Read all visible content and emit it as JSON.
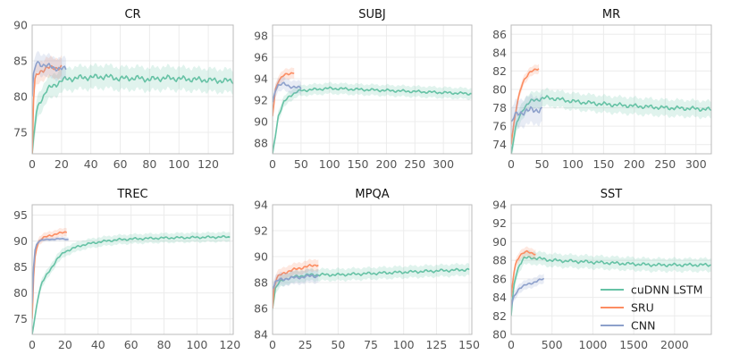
{
  "legend": {
    "placement": "lower-right of last panel",
    "entries": [
      {
        "label": "cuDNN LSTM",
        "color": "#66c2a5"
      },
      {
        "label": "SRU",
        "color": "#fc8d62"
      },
      {
        "label": "CNN",
        "color": "#8da0cb"
      }
    ]
  },
  "chart_data": [
    {
      "type": "line",
      "title": "CR",
      "xlim": [
        0,
        137
      ],
      "ylim": [
        72,
        90
      ],
      "xticks": [
        0,
        20,
        40,
        60,
        80,
        100,
        120
      ],
      "yticks": [
        75,
        80,
        85,
        90
      ],
      "grid": true,
      "series": [
        {
          "name": "cuDNN LSTM",
          "band": 1.6,
          "points": [
            [
              0,
              72
            ],
            [
              3,
              78
            ],
            [
              6,
              79.5
            ],
            [
              10,
              81
            ],
            [
              15,
              81.5
            ],
            [
              20,
              82.3
            ],
            [
              30,
              82.6
            ],
            [
              40,
              82.7
            ],
            [
              50,
              82.8
            ],
            [
              60,
              82.5
            ],
            [
              70,
              82.6
            ],
            [
              80,
              82.4
            ],
            [
              90,
              82.6
            ],
            [
              100,
              82.5
            ],
            [
              110,
              82.4
            ],
            [
              120,
              82.3
            ],
            [
              130,
              82.2
            ],
            [
              137,
              82.2
            ]
          ]
        },
        {
          "name": "SRU",
          "band": 1.4,
          "points": [
            [
              0,
              72
            ],
            [
              1,
              80
            ],
            [
              2,
              82.5
            ],
            [
              4,
              83.2
            ],
            [
              6,
              83.6
            ],
            [
              10,
              84
            ],
            [
              15,
              84
            ],
            [
              20,
              84.1
            ]
          ]
        },
        {
          "name": "CNN",
          "band": 1.5,
          "points": [
            [
              0,
              80
            ],
            [
              1,
              83
            ],
            [
              3,
              84.8
            ],
            [
              5,
              84.6
            ],
            [
              10,
              84.3
            ],
            [
              15,
              84
            ],
            [
              20,
              83.9
            ],
            [
              23,
              83.8
            ]
          ]
        }
      ]
    },
    {
      "type": "line",
      "title": "SUBJ",
      "xlim": [
        0,
        350
      ],
      "ylim": [
        87,
        99
      ],
      "xticks": [
        0,
        50,
        100,
        150,
        200,
        250,
        300
      ],
      "yticks": [
        88,
        90,
        92,
        94,
        96,
        98
      ],
      "grid": true,
      "series": [
        {
          "name": "cuDNN LSTM",
          "band": 0.5,
          "points": [
            [
              0,
              87
            ],
            [
              10,
              90.5
            ],
            [
              20,
              91.8
            ],
            [
              30,
              92.4
            ],
            [
              40,
              92.7
            ],
            [
              50,
              92.9
            ],
            [
              75,
              93
            ],
            [
              100,
              93.1
            ],
            [
              150,
              93
            ],
            [
              200,
              92.9
            ],
            [
              250,
              92.8
            ],
            [
              300,
              92.7
            ],
            [
              350,
              92.6
            ]
          ]
        },
        {
          "name": "SRU",
          "band": 0.5,
          "points": [
            [
              0,
              90.5
            ],
            [
              5,
              93
            ],
            [
              10,
              93.8
            ],
            [
              20,
              94.3
            ],
            [
              30,
              94.5
            ],
            [
              38,
              94.6
            ]
          ]
        },
        {
          "name": "CNN",
          "band": 0.6,
          "points": [
            [
              0,
              91.8
            ],
            [
              5,
              93
            ],
            [
              10,
              93.4
            ],
            [
              20,
              93.5
            ],
            [
              30,
              93.3
            ],
            [
              40,
              93.2
            ],
            [
              50,
              93.1
            ]
          ]
        }
      ]
    },
    {
      "type": "line",
      "title": "MR",
      "xlim": [
        0,
        325
      ],
      "ylim": [
        73,
        87
      ],
      "xticks": [
        0,
        50,
        100,
        150,
        200,
        250,
        300
      ],
      "yticks": [
        74,
        76,
        78,
        80,
        82,
        84,
        86
      ],
      "grid": true,
      "series": [
        {
          "name": "cuDNN LSTM",
          "band": 0.9,
          "points": [
            [
              0,
              73
            ],
            [
              5,
              75
            ],
            [
              10,
              76.5
            ],
            [
              20,
              78
            ],
            [
              30,
              78.6
            ],
            [
              40,
              78.9
            ],
            [
              60,
              79.1
            ],
            [
              80,
              78.9
            ],
            [
              100,
              78.7
            ],
            [
              150,
              78.4
            ],
            [
              200,
              78.2
            ],
            [
              250,
              78
            ],
            [
              300,
              77.9
            ],
            [
              325,
              77.8
            ]
          ]
        },
        {
          "name": "SRU",
          "band": 0.5,
          "points": [
            [
              0,
              74
            ],
            [
              5,
              76.5
            ],
            [
              10,
              78.5
            ],
            [
              15,
              80
            ],
            [
              20,
              81
            ],
            [
              30,
              81.8
            ],
            [
              40,
              82.2
            ],
            [
              45,
              82.3
            ]
          ]
        },
        {
          "name": "CNN",
          "band": 1.5,
          "points": [
            [
              0,
              76.5
            ],
            [
              5,
              77
            ],
            [
              10,
              77.3
            ],
            [
              20,
              77.6
            ],
            [
              30,
              77.7
            ],
            [
              40,
              77.8
            ],
            [
              50,
              77.8
            ]
          ]
        }
      ]
    },
    {
      "type": "line",
      "title": "TREC",
      "xlim": [
        0,
        122
      ],
      "ylim": [
        72,
        97
      ],
      "xticks": [
        0,
        20,
        40,
        60,
        80,
        100,
        120
      ],
      "yticks": [
        75,
        80,
        85,
        90,
        95
      ],
      "grid": true,
      "series": [
        {
          "name": "cuDNN LSTM",
          "band": 0.9,
          "points": [
            [
              0,
              72
            ],
            [
              2,
              76
            ],
            [
              4,
              80
            ],
            [
              6,
              82
            ],
            [
              10,
              84
            ],
            [
              15,
              86.5
            ],
            [
              20,
              88
            ],
            [
              30,
              89.2
            ],
            [
              40,
              89.8
            ],
            [
              50,
              90.2
            ],
            [
              60,
              90.4
            ],
            [
              80,
              90.6
            ],
            [
              100,
              90.7
            ],
            [
              120,
              90.8
            ]
          ]
        },
        {
          "name": "SRU",
          "band": 0.8,
          "points": [
            [
              0,
              75
            ],
            [
              1,
              84
            ],
            [
              2,
              88
            ],
            [
              4,
              90
            ],
            [
              6,
              90.5
            ],
            [
              10,
              91
            ],
            [
              15,
              91.4
            ],
            [
              20,
              91.7
            ],
            [
              21,
              91.8
            ]
          ]
        },
        {
          "name": "CNN",
          "band": 0.4,
          "points": [
            [
              0,
              78
            ],
            [
              1,
              86
            ],
            [
              2,
              89
            ],
            [
              4,
              90
            ],
            [
              6,
              90.2
            ],
            [
              10,
              90.3
            ],
            [
              15,
              90.4
            ],
            [
              20,
              90.4
            ],
            [
              22,
              90.3
            ]
          ]
        }
      ]
    },
    {
      "type": "line",
      "title": "MPQA",
      "xlim": [
        0,
        152
      ],
      "ylim": [
        84,
        94
      ],
      "xticks": [
        0,
        25,
        50,
        75,
        100,
        125,
        150
      ],
      "yticks": [
        84,
        86,
        88,
        90,
        92,
        94
      ],
      "grid": true,
      "series": [
        {
          "name": "cuDNN LSTM",
          "band": 0.45,
          "points": [
            [
              0,
              86
            ],
            [
              2,
              87.5
            ],
            [
              5,
              88
            ],
            [
              10,
              88.3
            ],
            [
              20,
              88.5
            ],
            [
              30,
              88.6
            ],
            [
              50,
              88.6
            ],
            [
              75,
              88.7
            ],
            [
              100,
              88.8
            ],
            [
              125,
              88.9
            ],
            [
              150,
              89
            ]
          ]
        },
        {
          "name": "SRU",
          "band": 0.45,
          "points": [
            [
              0,
              86
            ],
            [
              1,
              87.6
            ],
            [
              3,
              88.3
            ],
            [
              6,
              88.6
            ],
            [
              10,
              88.8
            ],
            [
              20,
              89.1
            ],
            [
              30,
              89.3
            ],
            [
              35,
              89.4
            ]
          ]
        },
        {
          "name": "CNN",
          "band": 0.5,
          "points": [
            [
              0,
              87.5
            ],
            [
              2,
              88
            ],
            [
              5,
              88.2
            ],
            [
              10,
              88.3
            ],
            [
              20,
              88.4
            ],
            [
              30,
              88.5
            ],
            [
              35,
              88.5
            ]
          ]
        }
      ]
    },
    {
      "type": "line",
      "title": "SST",
      "xlim": [
        0,
        2450
      ],
      "ylim": [
        80,
        94
      ],
      "xticks": [
        0,
        500,
        1000,
        1500,
        2000
      ],
      "yticks": [
        80,
        82,
        84,
        86,
        88,
        90,
        92,
        94
      ],
      "grid": true,
      "series": [
        {
          "name": "cuDNN LSTM",
          "band": 0.7,
          "points": [
            [
              0,
              82
            ],
            [
              30,
              85
            ],
            [
              60,
              86.5
            ],
            [
              100,
              87.5
            ],
            [
              150,
              88.2
            ],
            [
              250,
              88.3
            ],
            [
              500,
              88
            ],
            [
              750,
              87.9
            ],
            [
              1000,
              87.8
            ],
            [
              1250,
              87.7
            ],
            [
              1500,
              87.6
            ],
            [
              1750,
              87.5
            ],
            [
              2000,
              87.5
            ],
            [
              2250,
              87.5
            ],
            [
              2450,
              87.5
            ]
          ]
        },
        {
          "name": "SRU",
          "band": 0.5,
          "points": [
            [
              0,
              84
            ],
            [
              30,
              86.5
            ],
            [
              60,
              87.8
            ],
            [
              100,
              88.5
            ],
            [
              150,
              88.8
            ],
            [
              200,
              88.9
            ],
            [
              250,
              88.8
            ],
            [
              300,
              88.7
            ]
          ]
        },
        {
          "name": "CNN",
          "band": 0.5,
          "points": [
            [
              0,
              83
            ],
            [
              30,
              84
            ],
            [
              60,
              84.5
            ],
            [
              100,
              85
            ],
            [
              200,
              85.4
            ],
            [
              300,
              85.7
            ],
            [
              400,
              86
            ]
          ]
        }
      ]
    }
  ]
}
